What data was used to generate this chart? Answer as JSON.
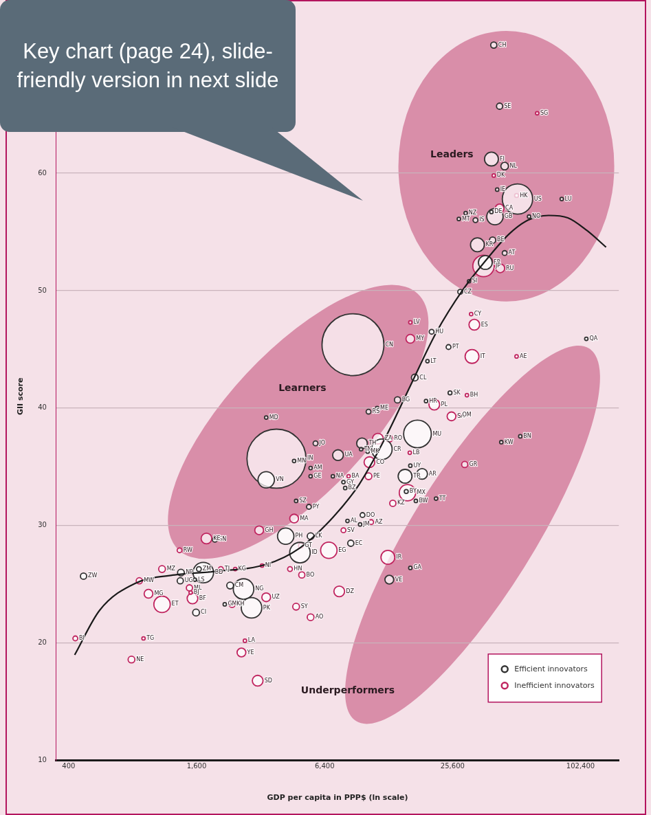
{
  "chart_data": {
    "type": "bubble",
    "xlabel": "GDP per capita in PPP$ (ln scale)",
    "ylabel": "GII score",
    "log": "x",
    "grid": "y",
    "legend": "bottom right",
    "marker": "circle",
    "xlim": [
      350,
      155000
    ],
    "ylim": [
      10,
      72
    ],
    "xticks": [
      {
        "value": 400,
        "label": "400"
      },
      {
        "value": 1600,
        "label": "1,600"
      },
      {
        "value": 6400,
        "label": "6,400"
      },
      {
        "value": 25600,
        "label": "25,600"
      },
      {
        "value": 102400,
        "label": "102,400"
      }
    ],
    "yticks": [
      10,
      20,
      30,
      40,
      50,
      60
    ],
    "annotations": [
      "Key chart (page 24), slide-friendly version in next slide",
      "Leaders",
      "Learners",
      "Underperformers"
    ],
    "series": [
      {
        "name": "Efficient innovators",
        "color": "#333333",
        "x": [
          40000,
          42600,
          39000,
          45000,
          41500,
          51700,
          83500,
          40500,
          39000,
          29500,
          32800,
          27400,
          58600,
          39500,
          33500,
          45000,
          36500,
          30600,
          27800,
          20400,
          24500,
          19500,
          109000,
          17000,
          24900,
          19200,
          17500,
          43400,
          53300,
          16200,
          18400,
          15300,
          15500,
          21400,
          17200,
          9650,
          8200,
          9400,
          8500,
          12900,
          16200,
          8700,
          3800,
          3400,
          3400,
          4600,
          5500,
          5500,
          5800,
          7400,
          9600,
          9500,
          11900,
          10300,
          11300,
          14100,
          10200,
          7850,
          8000,
          4700,
          5400,
          4200,
          5500,
          4900,
          1950,
          1720,
          1640,
          1350,
          1340,
          1570,
          1590,
          2300,
          2660,
          2900,
          470,
          2170,
          7000
        ],
        "values": [
          70.9,
          65.7,
          61.2,
          60.6,
          58.6,
          57.8,
          57.8,
          56.3,
          56.7,
          56.6,
          56.0,
          56.1,
          56.3,
          54.3,
          53.9,
          53.2,
          52.4,
          50.8,
          49.9,
          46.5,
          45.2,
          44.0,
          45.9,
          42.6,
          41.3,
          40.6,
          37.8,
          37.1,
          37.6,
          35.1,
          34.4,
          34.2,
          32.9,
          32.3,
          32.1,
          30.9,
          30.4,
          30.1,
          28.5,
          25.4,
          26.4,
          45.4,
          35.7,
          33.9,
          39.2,
          35.5,
          34.9,
          34.2,
          37.0,
          36.0,
          37.0,
          36.5,
          36.5,
          39.7,
          40.0,
          40.7,
          36.3,
          33.7,
          33.2,
          32.1,
          31.6,
          29.1,
          29.1,
          27.7,
          28.8,
          26.0,
          26.3,
          26.0,
          25.3,
          25.4,
          22.6,
          24.9,
          24.6,
          23.0,
          25.7,
          23.3,
          34.2
        ],
        "sizes": [
          0.01,
          0.01,
          0.05,
          0.015,
          0.003,
          0.24,
          0.003,
          0.07,
          0.003,
          0.003,
          0.006,
          0.003,
          0.003,
          0.01,
          0.05,
          0.006,
          0.05,
          0.003,
          0.006,
          0.006,
          0.006,
          0.003,
          0.003,
          0.012,
          0.004,
          0.003,
          0.2,
          0.003,
          0.003,
          0.003,
          0.03,
          0.05,
          0.004,
          0.003,
          0.003,
          0.006,
          0.003,
          0.003,
          0.01,
          0.02,
          0.003,
          1,
          0.91,
          0.07,
          0.003,
          0.003,
          0.003,
          0.003,
          0.006,
          0.03,
          0.03,
          0.003,
          0.11,
          0.006,
          0.003,
          0.01,
          0.003,
          0.003,
          0.003,
          0.003,
          0.006,
          0.07,
          0.012,
          0.11,
          0.006,
          0.11,
          0.006,
          0.012,
          0.01,
          0.003,
          0.012,
          0.012,
          0.11,
          0.11,
          0.01,
          0.003,
          0.003
        ],
        "value_labels": [
          "CH",
          "SE",
          "FI",
          "NL",
          "IE",
          "US",
          "LU",
          "GB",
          "DE",
          "NZ",
          "IS",
          "MT",
          "NO",
          "BE",
          "KR",
          "AT",
          "FR",
          "SI",
          "CZ",
          "HU",
          "PT",
          "LT",
          "QA",
          "CL",
          "SK",
          "HR",
          "MU",
          "KW",
          "BN",
          "UY",
          "AR",
          "TR",
          "BY",
          "TT",
          "BW",
          "DO",
          "AL",
          "JM",
          "EC",
          "VE",
          "GA",
          "CN",
          "IN",
          "VN",
          "MD",
          "MN",
          "AM",
          "GE",
          "JO",
          "UA",
          "TH",
          "TN",
          "CR",
          "RS",
          "ME",
          "BG",
          "MK",
          "GY",
          "BZ",
          "SZ",
          "PY",
          "PH",
          "LK",
          "ID",
          "SN",
          "BD",
          "ZM",
          "NP",
          "UG",
          "LS",
          "CI",
          "CM",
          "NG",
          "PK",
          "ZW",
          "GM",
          "NA"
        ]
      },
      {
        "name": "Inefficient innovators",
        "color": "#c0245f",
        "x": [
          64000,
          40000,
          51200,
          42600,
          35800,
          42900,
          31300,
          32400,
          16200,
          16200,
          31600,
          51200,
          29900,
          21000,
          25300,
          27500,
          16100,
          29200,
          15700,
          13400,
          10600,
          7850,
          12700,
          6700,
          5000,
          4400,
          7500,
          4700,
          5500,
          3100,
          2700,
          2600,
          11400,
          12900,
          10400,
          8300,
          10300,
          4600,
          4950,
          1780,
          3150,
          1330,
          1100,
          860,
          1480,
          1530,
          1500,
          950,
          1100,
          2080,
          2430,
          3250,
          3400,
          2350,
          430,
          900,
          790
        ],
        "values": [
          65.1,
          59.8,
          58.1,
          57.0,
          52.1,
          51.9,
          48.0,
          47.1,
          45.9,
          47.3,
          44.4,
          44.4,
          41.1,
          40.3,
          39.3,
          39.4,
          36.2,
          35.2,
          32.8,
          31.9,
          30.3,
          29.6,
          27.3,
          27.9,
          25.8,
          26.3,
          24.4,
          23.1,
          22.2,
          16.8,
          20.2,
          19.2,
          37.4,
          37.4,
          35.4,
          34.2,
          34.2,
          30.6,
          28.3,
          28.9,
          29.6,
          27.9,
          26.3,
          25.3,
          24.7,
          23.8,
          24.3,
          24.2,
          23.3,
          26.3,
          26.3,
          26.6,
          23.9,
          23.3,
          20.4,
          20.4,
          18.6
        ],
        "sizes": [
          0.003,
          0.003,
          0.004,
          0.02,
          0.12,
          0.02,
          0.003,
          0.03,
          0.02,
          0.003,
          0.05,
          0.003,
          0.003,
          0.03,
          0.02,
          0.003,
          0.003,
          0.01,
          0.07,
          0.01,
          0.006,
          0.006,
          0.05,
          0.07,
          0.01,
          0.006,
          0.03,
          0.012,
          0.012,
          0.03,
          0.003,
          0.02,
          0.03,
          0.012,
          0.03,
          0.003,
          0.012,
          0.02,
          0.006,
          0.03,
          0.02,
          0.006,
          0.012,
          0.01,
          0.01,
          0.03,
          0.003,
          0.02,
          0.07,
          0.006,
          0.003,
          0.003,
          0.02,
          0.01,
          0.006,
          0.003,
          0.012
        ],
        "value_labels": [
          "SG",
          "DK",
          "HK",
          "CA",
          "JP",
          "RU",
          "CY",
          "ES",
          "MY",
          "LV",
          "IT",
          "AE",
          "BH",
          "PL",
          "SA",
          "OM",
          "LB",
          "GR",
          "MX",
          "KZ",
          "AZ",
          "SV",
          "IR",
          "EG",
          "BO",
          "HN",
          "DZ",
          "SY",
          "AO",
          "SD",
          "LA",
          "YE",
          "ZA",
          "RO",
          "CO",
          "BA",
          "PE",
          "MA",
          "GT",
          "KE",
          "GH",
          "RW",
          "MZ",
          "MW",
          "ML",
          "BF",
          "BJ",
          "MG",
          "ET",
          "TJ",
          "KG",
          "NI",
          "UZ",
          "KH",
          "BI",
          "TG",
          "NE"
        ]
      },
      {
        "type": "line",
        "color": "#1a1a1a",
        "marker": "none",
        "line_style": "solid",
        "x": [
          427,
          560,
          825,
          1260,
          1940,
          3400,
          4900,
          7000,
          9300,
          12300,
          16200,
          21400,
          28700,
          36800,
          47100,
          58000,
          72400,
          89200,
          110000,
          135000
        ],
        "values": [
          19.0,
          22.8,
          25.1,
          25.8,
          26.1,
          26.7,
          28.1,
          30.7,
          33.5,
          37.4,
          41.9,
          46.4,
          50.1,
          52.6,
          54.8,
          56.0,
          56.4,
          56.2,
          55.1,
          53.7
        ]
      }
    ]
  }
}
